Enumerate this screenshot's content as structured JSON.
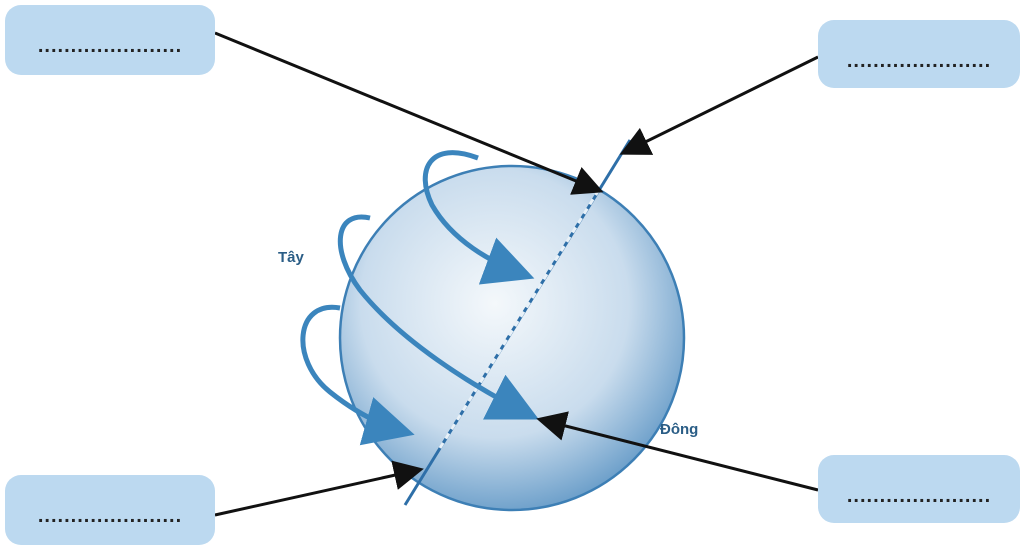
{
  "boxes": {
    "top_left": "......................",
    "top_right": "......................",
    "bottom_left": "......................",
    "bottom_right": "......................"
  },
  "directions": {
    "west": "Tây",
    "east": "Đông"
  }
}
